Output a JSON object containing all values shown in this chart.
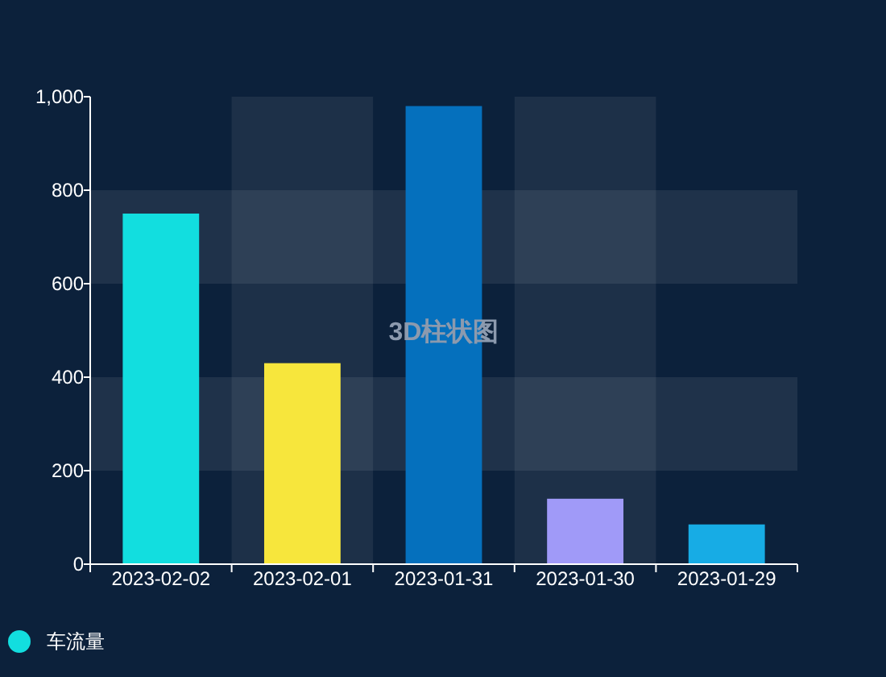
{
  "chart_data": {
    "type": "bar",
    "title": "3D柱状图",
    "categories": [
      "2023-02-02",
      "2023-02-01",
      "2023-01-31",
      "2023-01-30",
      "2023-01-29"
    ],
    "series": [
      {
        "name": "车流量",
        "color": "#12dedf",
        "colors": [
          "#12dedf",
          "#f7e63c",
          "#0570bd",
          "#a09af8",
          "#17ace5"
        ],
        "values": [
          750,
          430,
          980,
          140,
          85
        ]
      }
    ],
    "ylim": [
      0,
      1000
    ],
    "yticks": [
      0,
      200,
      400,
      600,
      {
        "value": 800,
        "label": "800"
      },
      {
        "value": 1000,
        "label": "1,000"
      }
    ],
    "bands": [
      {
        "axis": "y",
        "from": 200,
        "to": 400,
        "color": "#fafafa"
      },
      {
        "axis": "y",
        "from": 600,
        "to": 800,
        "color": "#fafafa"
      },
      {
        "axis": "x",
        "from": "2023-02-01",
        "to": "2023-02-01",
        "color": "#fafafa"
      },
      {
        "axis": "x",
        "from": "2023-01-30",
        "to": "2023-01-30",
        "color": "#fafafa"
      }
    ],
    "legend": "bottom left"
  }
}
